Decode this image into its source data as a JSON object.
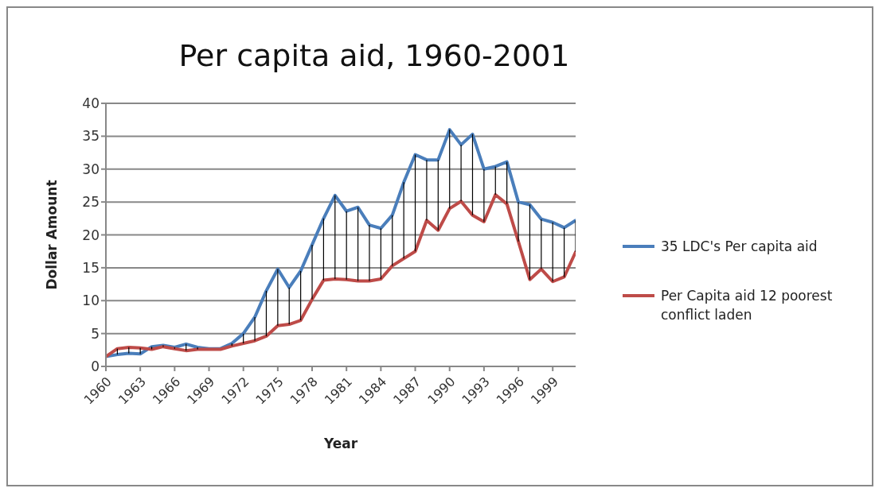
{
  "chart_data": {
    "type": "line",
    "title": "Per capita aid,  1960-2001",
    "xlabel": "Year",
    "ylabel": "Dollar Amount",
    "x": [
      1960,
      1961,
      1962,
      1963,
      1964,
      1965,
      1966,
      1967,
      1968,
      1969,
      1970,
      1971,
      1972,
      1973,
      1974,
      1975,
      1976,
      1977,
      1978,
      1979,
      1980,
      1981,
      1982,
      1983,
      1984,
      1985,
      1986,
      1987,
      1988,
      1989,
      1990,
      1991,
      1992,
      1993,
      1994,
      1995,
      1996,
      1997,
      1998,
      1999,
      2000,
      2001
    ],
    "xlim": [
      1960,
      2001
    ],
    "xticks": [
      1960,
      1963,
      1966,
      1969,
      1972,
      1975,
      1978,
      1981,
      1984,
      1987,
      1990,
      1993,
      1996,
      1999
    ],
    "ylim": [
      0,
      40
    ],
    "yticks": [
      0,
      5,
      10,
      15,
      20,
      25,
      30,
      35,
      40
    ],
    "series": [
      {
        "name": "35 LDC's Per capita  aid",
        "color": "#4a7ebb",
        "values": [
          1.5,
          1.8,
          2.0,
          1.9,
          3.0,
          3.2,
          2.9,
          3.4,
          2.9,
          2.7,
          2.7,
          3.5,
          5.0,
          7.5,
          11.5,
          14.8,
          12.0,
          14.5,
          18.5,
          22.5,
          26.0,
          23.6,
          24.2,
          21.5,
          21.0,
          23.0,
          28.0,
          32.2,
          31.4,
          31.4,
          36.0,
          33.7,
          35.3,
          30.0,
          30.4,
          31.1,
          25.0,
          24.6,
          22.4,
          21.9,
          21.1,
          22.2
        ]
      },
      {
        "name": "Per Capita aid 12 poorest conflict laden",
        "color": "#be4b48",
        "values": [
          1.5,
          2.7,
          2.9,
          2.8,
          2.6,
          3.0,
          2.7,
          2.4,
          2.6,
          2.6,
          2.6,
          3.1,
          3.5,
          3.9,
          4.6,
          6.2,
          6.4,
          7.0,
          10.2,
          13.1,
          13.3,
          13.2,
          13.0,
          13.0,
          13.3,
          15.3,
          16.4,
          17.5,
          22.2,
          20.7,
          24.0,
          25.1,
          23.0,
          22.0,
          26.1,
          24.7,
          19.0,
          13.2,
          14.8,
          12.9,
          13.6,
          17.4
        ],
        "errors": [
          null,
          [
            1.8,
            2.7
          ],
          [
            2.0,
            2.9
          ],
          [
            1.9,
            2.8
          ],
          [
            2.6,
            3.0
          ],
          [
            3.0,
            3.2
          ],
          [
            2.7,
            2.9
          ],
          [
            2.4,
            3.4
          ],
          [
            2.6,
            2.9
          ],
          null,
          null,
          [
            3.1,
            3.5
          ],
          [
            3.5,
            5.0
          ],
          [
            3.9,
            7.5
          ],
          [
            4.6,
            11.5
          ],
          [
            6.2,
            14.8
          ],
          [
            6.4,
            12.0
          ],
          [
            7.0,
            14.5
          ],
          [
            10.2,
            18.5
          ],
          [
            13.1,
            22.5
          ],
          [
            13.3,
            26.0
          ],
          [
            13.2,
            23.6
          ],
          [
            13.0,
            24.2
          ],
          [
            13.0,
            21.5
          ],
          [
            13.3,
            21.0
          ],
          [
            15.3,
            23.0
          ],
          [
            16.4,
            28.0
          ],
          [
            17.5,
            32.2
          ],
          [
            22.2,
            31.4
          ],
          [
            20.7,
            31.4
          ],
          [
            24.0,
            36.0
          ],
          [
            25.1,
            33.7
          ],
          [
            23.0,
            35.3
          ],
          [
            22.0,
            30.0
          ],
          [
            26.1,
            30.4
          ],
          [
            24.7,
            31.1
          ],
          [
            19.0,
            25.0
          ],
          [
            13.2,
            24.6
          ],
          [
            14.8,
            22.4
          ],
          [
            12.9,
            21.9
          ],
          [
            13.6,
            21.1
          ],
          [
            17.4,
            22.2
          ]
        ]
      }
    ],
    "grid": "y",
    "legend": "right",
    "marker": "none",
    "line_style": "solid"
  }
}
